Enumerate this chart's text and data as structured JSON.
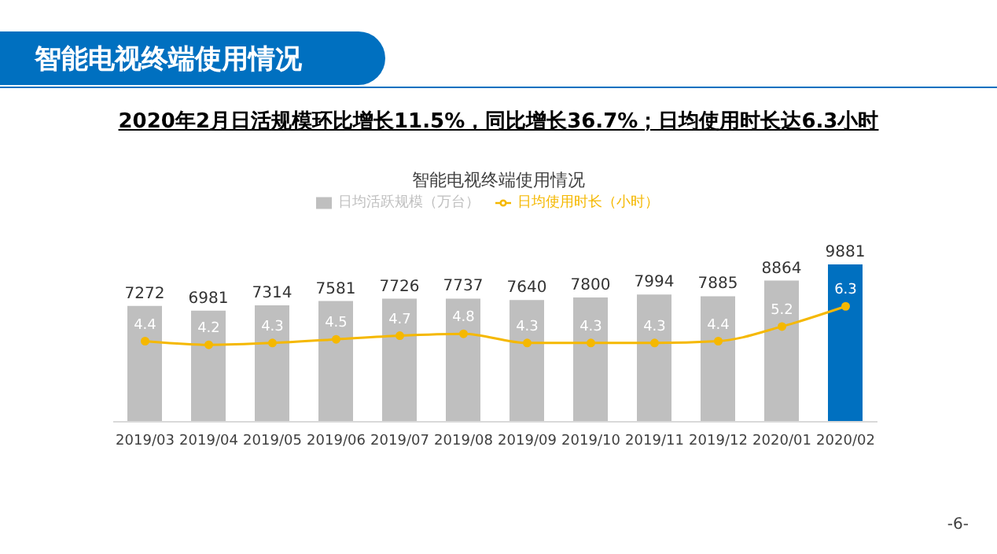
{
  "chart_data": {
    "type": "bar",
    "title": "智能电视终端使用情况",
    "subtitle": "2020年2月日活规模环比增长11.5%，同比增长36.7%；日均使用时长达6.3小时",
    "annotations": [
      "智能电视终端使用情况",
      "-6-"
    ],
    "categories": [
      "2019/03",
      "2019/04",
      "2019/05",
      "2019/06",
      "2019/07",
      "2019/08",
      "2019/09",
      "2019/10",
      "2019/11",
      "2019/12",
      "2020/01",
      "2020/02"
    ],
    "series": [
      {
        "name": "日均活跃规模（万台）",
        "type": "bar",
        "color": "#bfbfbf",
        "colors": [
          "#bfbfbf",
          "#bfbfbf",
          "#bfbfbf",
          "#bfbfbf",
          "#bfbfbf",
          "#bfbfbf",
          "#bfbfbf",
          "#bfbfbf",
          "#bfbfbf",
          "#bfbfbf",
          "#bfbfbf",
          "#0070c0"
        ],
        "values": [
          7272,
          6981,
          7314,
          7581,
          7726,
          7737,
          7640,
          7800,
          7994,
          7885,
          8864,
          9881
        ]
      },
      {
        "name": "日均使用时长（小时）",
        "type": "line",
        "axis": "y2",
        "color": "#f5b800",
        "values": [
          4.4,
          4.2,
          4.3,
          4.5,
          4.7,
          4.8,
          4.3,
          4.3,
          4.3,
          4.4,
          5.2,
          6.3
        ]
      }
    ],
    "data_labels": true,
    "legend": "top",
    "marker": "circle",
    "tick_labels": "x",
    "grid": false
  }
}
